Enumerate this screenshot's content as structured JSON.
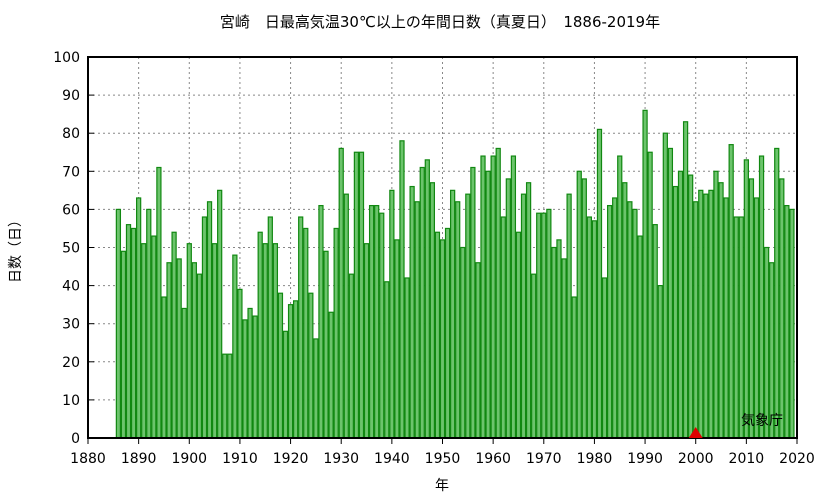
{
  "chart_data": {
    "type": "bar",
    "title": "宮崎　日最高気温30℃以上の年間日数（真夏日）　1886-2019年",
    "xlabel": "年",
    "ylabel": "日数（日）",
    "xlim": [
      1880,
      2020
    ],
    "ylim": [
      0,
      100
    ],
    "xticks": [
      1880,
      1890,
      1900,
      1910,
      1920,
      1930,
      1940,
      1950,
      1960,
      1970,
      1980,
      1990,
      2000,
      2010,
      2020
    ],
    "yticks": [
      0,
      10,
      20,
      30,
      40,
      50,
      60,
      70,
      80,
      90,
      100
    ],
    "grid": true,
    "start_year": 1886,
    "values": [
      60,
      49,
      56,
      55,
      63,
      51,
      60,
      53,
      71,
      37,
      46,
      54,
      47,
      34,
      51,
      46,
      43,
      58,
      62,
      51,
      65,
      22,
      22,
      48,
      39,
      31,
      34,
      32,
      54,
      51,
      58,
      51,
      38,
      28,
      35,
      36,
      58,
      55,
      38,
      26,
      61,
      49,
      33,
      55,
      76,
      64,
      43,
      75,
      75,
      51,
      61,
      61,
      59,
      41,
      65,
      52,
      78,
      42,
      66,
      62,
      71,
      73,
      67,
      54,
      52,
      55,
      65,
      62,
      50,
      64,
      71,
      46,
      74,
      70,
      74,
      76,
      58,
      68,
      74,
      54,
      64,
      67,
      43,
      59,
      59,
      60,
      50,
      52,
      47,
      64,
      37,
      70,
      68,
      58,
      57,
      81,
      42,
      61,
      63,
      74,
      67,
      62,
      60,
      53,
      86,
      75,
      56,
      40,
      80,
      76,
      66,
      70,
      83,
      69,
      62,
      65,
      64,
      65,
      70,
      67,
      63,
      77,
      58,
      58,
      73,
      68,
      63,
      74,
      50,
      46,
      76,
      68,
      61,
      60
    ],
    "marker_year": 2000,
    "source": "気象庁",
    "colors": {
      "bar_fill": "#6cc46c",
      "bar_edge": "#118811",
      "marker": "#e00000"
    }
  }
}
